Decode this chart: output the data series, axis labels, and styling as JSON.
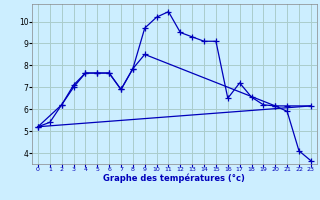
{
  "xlabel": "Graphe des températures (°c)",
  "bg_color": "#cceeff",
  "grid_color": "#aacccc",
  "line_color": "#0000bb",
  "xlim": [
    -0.5,
    23.5
  ],
  "ylim": [
    3.5,
    10.8
  ],
  "xticks": [
    0,
    1,
    2,
    3,
    4,
    5,
    6,
    7,
    8,
    9,
    10,
    11,
    12,
    13,
    14,
    15,
    16,
    17,
    18,
    19,
    20,
    21,
    22,
    23
  ],
  "yticks": [
    4,
    5,
    6,
    7,
    8,
    9,
    10
  ],
  "curve1_x": [
    0,
    1,
    2,
    3,
    4,
    5,
    6,
    7,
    8,
    9,
    10,
    11,
    12,
    13,
    14,
    15,
    16,
    17,
    18,
    19,
    20,
    21,
    22,
    23
  ],
  "curve1_y": [
    5.2,
    5.4,
    6.2,
    7.1,
    7.65,
    7.65,
    7.65,
    6.9,
    7.85,
    9.7,
    10.2,
    10.45,
    9.5,
    9.3,
    9.1,
    9.1,
    6.5,
    7.2,
    6.55,
    6.2,
    6.15,
    5.9,
    4.1,
    3.65
  ],
  "curve2_x": [
    0,
    2,
    3,
    4,
    5,
    6,
    7,
    8,
    9,
    20,
    21,
    23
  ],
  "curve2_y": [
    5.2,
    6.2,
    7.0,
    7.65,
    7.65,
    7.65,
    6.9,
    7.85,
    8.5,
    6.15,
    6.15,
    6.15
  ],
  "curve3_x": [
    0,
    23
  ],
  "curve3_y": [
    5.2,
    6.15
  ]
}
